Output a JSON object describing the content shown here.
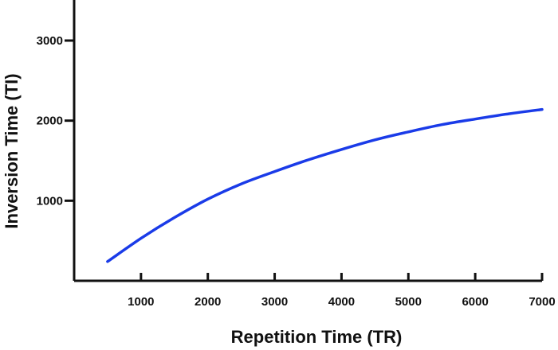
{
  "chart_data": {
    "type": "line",
    "xlabel": "Repetition Time (TR)",
    "ylabel": "Inversion Time (TI)",
    "xlim": [
      0,
      7000
    ],
    "ylim": [
      0,
      3500
    ],
    "x_ticks": [
      1000,
      2000,
      3000,
      4000,
      5000,
      6000,
      7000
    ],
    "y_ticks": [
      1000,
      2000,
      3000
    ],
    "grid": false,
    "line_color": "#1a3be8",
    "series": [
      {
        "x": [
          500,
          1000,
          1500,
          2000,
          2500,
          3000,
          3500,
          4000,
          4500,
          5000,
          5500,
          6000,
          6500,
          7000
        ],
        "y": [
          240,
          530,
          790,
          1020,
          1210,
          1365,
          1510,
          1640,
          1760,
          1860,
          1950,
          2020,
          2085,
          2140
        ]
      }
    ]
  }
}
